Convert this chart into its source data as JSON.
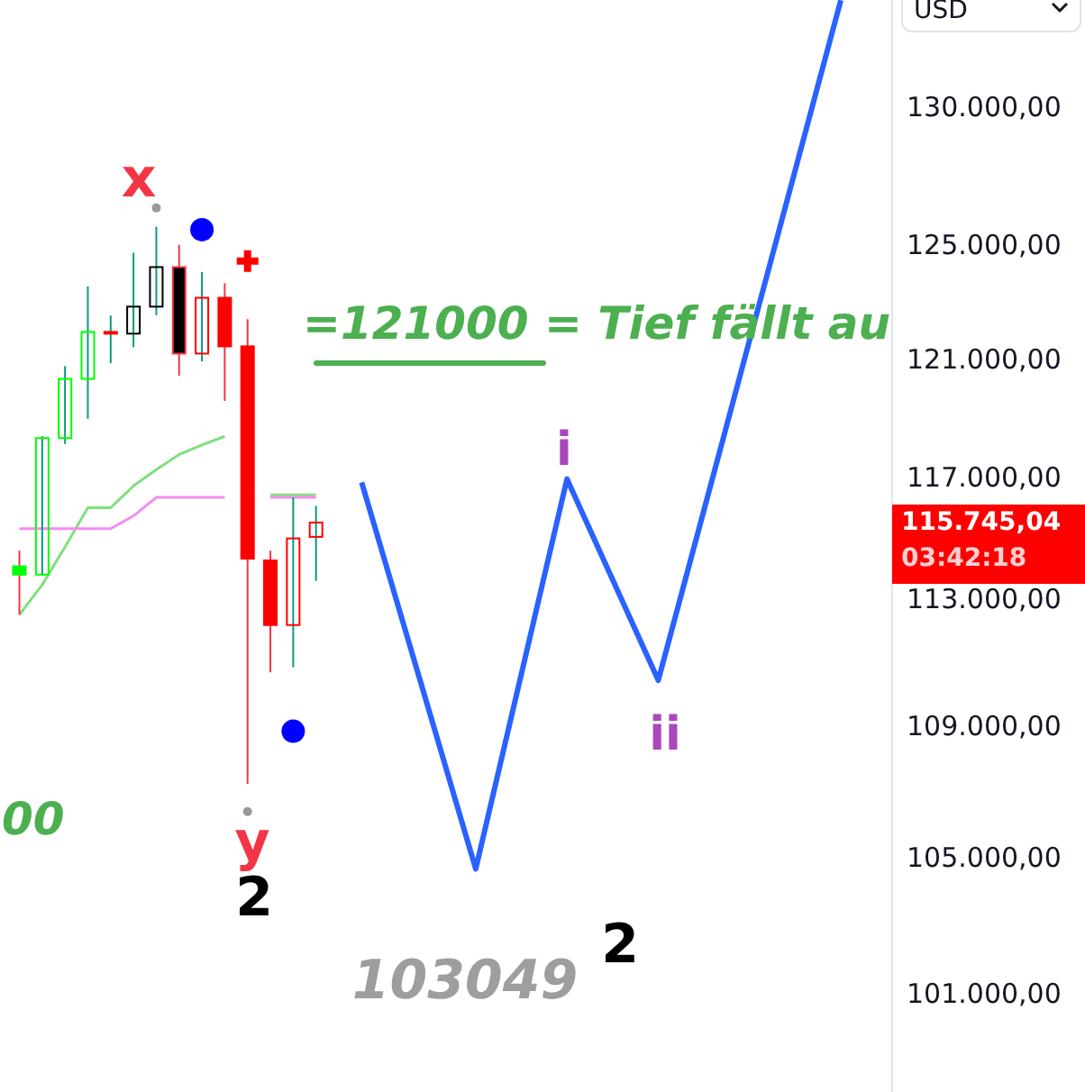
{
  "chart_data": {
    "type": "candlestick",
    "categories": [
      null,
      null,
      null,
      null,
      null,
      null,
      null,
      null,
      null,
      null,
      null,
      null,
      null,
      null,
      null,
      null,
      null,
      null,
      null,
      null,
      null,
      null,
      null,
      null,
      null,
      null,
      null,
      null,
      null,
      null,
      null,
      null,
      null,
      null,
      null,
      null,
      null,
      null,
      null
    ],
    "ohlc": [
      [
        114050,
        114560,
        112490,
        113780
      ],
      [
        113780,
        118350,
        113780,
        118290
      ],
      [
        118290,
        120740,
        118090,
        120300
      ],
      [
        120300,
        123510,
        118940,
        121920
      ],
      [
        121920,
        122490,
        120840,
        121920
      ],
      [
        121860,
        124700,
        121390,
        122800
      ],
      [
        122800,
        125620,
        122500,
        124190
      ],
      [
        124190,
        124980,
        120410,
        121170
      ],
      [
        121170,
        124020,
        120900,
        123110
      ],
      [
        123110,
        123620,
        119550,
        121420
      ],
      [
        121420,
        122360,
        107200,
        114300
      ],
      [
        114240,
        114560,
        110660,
        112160
      ],
      [
        112160,
        116310,
        110820,
        114960
      ],
      [
        115010,
        116030,
        113580,
        115480
      ],
      null,
      null,
      null,
      null,
      null,
      null,
      null,
      null,
      null,
      null,
      null,
      null,
      null,
      null,
      null,
      null,
      null,
      null,
      null,
      null,
      null,
      null,
      null,
      null,
      null
    ],
    "colors": [
      "#00ff00",
      "#00ff00",
      "#00ff00",
      "#00ff00",
      "#ff0000",
      "#000000",
      "#000000",
      "#000000",
      "#ff0000",
      "#ff0000",
      "#ff0000",
      "#ff0000",
      "#ff0000",
      "#ff0000",
      null,
      null,
      null,
      null,
      null,
      null,
      null,
      null,
      null,
      null,
      null,
      null,
      null,
      null,
      null,
      null,
      null,
      null,
      null,
      null,
      null,
      null,
      null,
      null,
      null
    ],
    "series": [
      {
        "type": "line",
        "color": "#7ee07e",
        "values": [
          112490,
          113450,
          114680,
          115970,
          115970,
          116690,
          117230,
          117740,
          118060,
          118350,
          null,
          116390,
          116390,
          116390,
          null,
          null,
          null,
          null,
          null,
          null,
          null,
          null,
          null,
          null,
          null,
          null,
          null,
          null,
          null,
          null,
          null,
          null,
          null,
          null,
          null,
          null,
          null,
          null,
          null
        ]
      },
      {
        "type": "line",
        "color": "#f48cf4",
        "values": [
          115280,
          115280,
          115280,
          115280,
          115280,
          115700,
          116310,
          116310,
          116310,
          116310,
          null,
          116310,
          116310,
          116310,
          null,
          null,
          null,
          null,
          null,
          null,
          null,
          null,
          null,
          null,
          null,
          null,
          null,
          null,
          null,
          null,
          null,
          null,
          null,
          null,
          null,
          null,
          null,
          null,
          null
        ]
      },
      {
        "type": "line",
        "color": "#2962ff",
        "values": [
          null,
          null,
          null,
          null,
          null,
          null,
          null,
          null,
          null,
          null,
          null,
          null,
          null,
          null,
          null,
          116810,
          null,
          null,
          null,
          null,
          104640,
          null,
          null,
          null,
          116920,
          null,
          null,
          null,
          110410,
          null,
          null,
          null,
          null,
          null,
          null,
          null,
          133990,
          null,
          null
        ]
      },
      {
        "type": "scatter",
        "marker": "circle",
        "color": "#0000ff",
        "values": [
          null,
          null,
          null,
          null,
          null,
          null,
          null,
          null,
          125520,
          null,
          null,
          null,
          108820,
          null,
          null,
          null,
          null,
          null,
          null,
          null,
          null,
          null,
          null,
          null,
          null,
          null,
          null,
          null,
          null,
          null,
          null,
          null,
          null,
          null,
          null,
          null,
          null,
          null,
          null
        ]
      },
      {
        "type": "scatter",
        "marker": "circle",
        "color": "#999999",
        "values": [
          null,
          null,
          null,
          null,
          null,
          null,
          126300,
          null,
          null,
          null,
          106360,
          null,
          null,
          null,
          null,
          null,
          null,
          null,
          null,
          null,
          null,
          null,
          null,
          null,
          null,
          null,
          null,
          null,
          null,
          null,
          null,
          null,
          null,
          null,
          null,
          null,
          null,
          null,
          null
        ]
      },
      {
        "type": "scatter",
        "marker": "cross",
        "color": "#ff0000",
        "values": [
          null,
          null,
          null,
          null,
          null,
          null,
          null,
          null,
          null,
          null,
          124400,
          null,
          null,
          null,
          null,
          null,
          null,
          null,
          null,
          null,
          null,
          null,
          null,
          null,
          null,
          null,
          null,
          null,
          null,
          null,
          null,
          null,
          null,
          null,
          null,
          null,
          null,
          null,
          null
        ]
      }
    ],
    "ylim": [
      98200,
      134000
    ],
    "yticks": [
      {
        "value": 101000,
        "label": "101.000,00"
      },
      {
        "value": 105000,
        "label": "105.000,00"
      },
      {
        "value": 109000,
        "label": "109.000,00"
      },
      {
        "value": 113000,
        "label": "113.000,00"
      },
      {
        "value": 117000,
        "label": "117.000,00"
      },
      {
        "value": 121000,
        "label": "121.000,00"
      },
      {
        "value": 125000,
        "label": "125.000,00"
      },
      {
        "value": 130000,
        "label": "130.000,00"
      }
    ],
    "log": "y",
    "tick_labels": "y",
    "annotations": [
      "x",
      "y",
      "2",
      "i",
      "ii",
      "2",
      "103049",
      "=121000 = Tief fällt au",
      "00",
      "115.745,04",
      "03:42:18",
      "USD"
    ]
  }
}
